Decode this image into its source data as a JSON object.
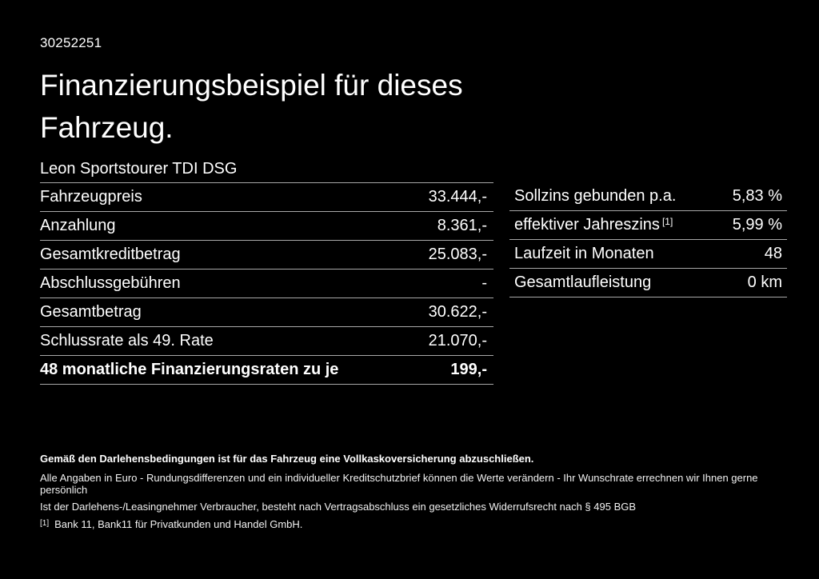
{
  "page": {
    "id_number": "30252251",
    "title_line1": "Finanzierungsbeispiel für dieses",
    "title_line2": "Fahrzeug.",
    "vehicle_name": "Leon Sportstourer TDI DSG"
  },
  "finance_table": {
    "rows": [
      {
        "label": "Fahrzeugpreis",
        "value": "33.444,-"
      },
      {
        "label": "Anzahlung",
        "value": "8.361,-"
      },
      {
        "label": "Gesamtkreditbetrag",
        "value": "25.083,-"
      },
      {
        "label": "Abschlussgebühren",
        "value": "-"
      },
      {
        "label": "Gesamtbetrag",
        "value": "30.622,-"
      },
      {
        "label": "Schlussrate als 49. Rate",
        "value": "21.070,-"
      },
      {
        "label": "48 monatliche Finanzierungsraten zu je",
        "value": "199,-"
      }
    ]
  },
  "conditions_table": {
    "rows": [
      {
        "label": "Sollzins gebunden p.a.",
        "value": "5,83 %"
      },
      {
        "label": "effektiver Jahreszins",
        "label_sup": "[1]",
        "value": "5,99 %"
      },
      {
        "label": "Laufzeit in Monaten",
        "value": "48"
      },
      {
        "label": "Gesamtlaufleistung",
        "value": "0 km"
      }
    ]
  },
  "footer": {
    "insurance_note": "Gemäß den Darlehensbedingungen ist für das Fahrzeug eine Vollkaskoversicherung abzuschließen.",
    "disclaimer1": "Alle Angaben in Euro - Rundungsdifferenzen und ein individueller Kreditschutzbrief können die Werte verändern - Ihr Wunschrate errechnen wir Ihnen gerne persönlich",
    "disclaimer2": "Ist der Darlehens-/Leasingnehmer Verbraucher, besteht nach Vertragsabschluss ein gesetzliches Widerrufsrecht nach § 495 BGB",
    "footnote_marker": "[1]",
    "footnote_text": "Bank 11, Bank11 für Privatkunden und Handel GmbH."
  },
  "colors": {
    "background": "#000000",
    "text": "#ffffff",
    "divider": "#a8a8a8"
  }
}
